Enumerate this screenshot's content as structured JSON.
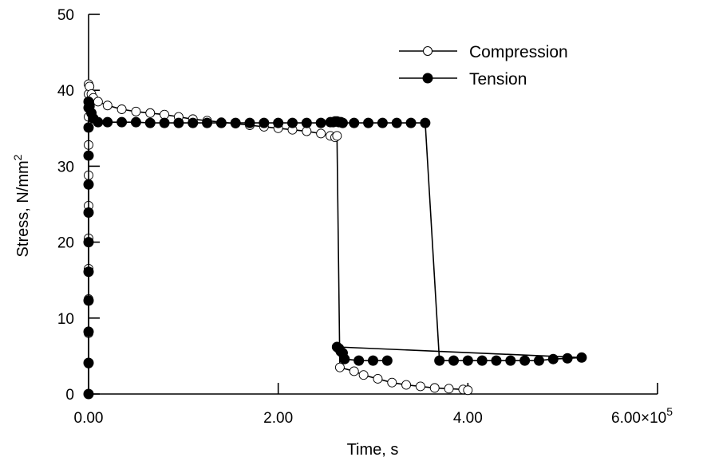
{
  "chart_data": {
    "type": "line",
    "title": "",
    "xlabel": "Time, s",
    "ylabel": "Stress, N/mm",
    "ylabel_superscript": "2",
    "x_unit_multiplier": "×10",
    "x_unit_exponent": "5",
    "xlim": [
      0,
      600000
    ],
    "ylim": [
      0,
      50
    ],
    "x_ticks": [
      0,
      200000,
      400000,
      600000
    ],
    "x_tick_labels": [
      "0.00",
      "2.00",
      "4.00",
      "6.00"
    ],
    "y_ticks": [
      0,
      10,
      20,
      30,
      40,
      50
    ],
    "y_tick_labels": [
      "0",
      "10",
      "20",
      "30",
      "40",
      "50"
    ],
    "grid": false,
    "legend_position": "top-right",
    "series": [
      {
        "name": "Compression",
        "marker": "open-circle",
        "color": "#000000",
        "x": [
          0,
          0,
          0,
          0,
          0,
          0,
          0,
          0,
          0,
          0,
          0,
          0,
          1000,
          3000,
          5000,
          10000,
          20000,
          35000,
          50000,
          65000,
          80000,
          95000,
          110000,
          125000,
          140000,
          155000,
          170000,
          185000,
          200000,
          215000,
          230000,
          245000,
          255000,
          260000,
          262000,
          265000,
          280000,
          290000,
          305000,
          320000,
          335000,
          350000,
          365000,
          380000,
          395000,
          400000
        ],
        "y": [
          0,
          4,
          8,
          12.5,
          16.5,
          20.5,
          24.8,
          28.8,
          32.8,
          36.5,
          39.5,
          40.8,
          40.5,
          39.5,
          39,
          38.5,
          38,
          37.5,
          37.2,
          37,
          36.8,
          36.5,
          36.2,
          36,
          35.8,
          35.6,
          35.4,
          35.2,
          35,
          34.8,
          34.6,
          34.3,
          34,
          33.8,
          34,
          3.5,
          3,
          2.5,
          2,
          1.5,
          1.2,
          1,
          0.8,
          0.7,
          0.6,
          0.5
        ]
      },
      {
        "name": "Tension",
        "marker": "filled-circle",
        "color": "#000000",
        "x": [
          0,
          0,
          0,
          0,
          0,
          0,
          0,
          0,
          0,
          0,
          0,
          0,
          1000,
          3000,
          5000,
          10000,
          20000,
          35000,
          50000,
          65000,
          80000,
          95000,
          110000,
          125000,
          140000,
          155000,
          170000,
          185000,
          200000,
          215000,
          230000,
          245000,
          255000,
          258000,
          260000,
          262000,
          264000,
          266000,
          268000,
          280000,
          295000,
          310000,
          325000,
          340000,
          355000,
          370000,
          385000,
          400000,
          415000,
          430000,
          445000,
          460000,
          475000,
          490000,
          505000,
          520000,
          262000,
          264000,
          266000,
          268000,
          270000,
          285000,
          300000,
          315000
        ],
        "y": [
          0,
          4.1,
          8.2,
          12.3,
          16.1,
          20,
          23.9,
          27.6,
          31.4,
          35.1,
          37.7,
          38.5,
          37.9,
          37,
          36.3,
          35.8,
          35.8,
          35.8,
          35.8,
          35.7,
          35.7,
          35.7,
          35.7,
          35.7,
          35.7,
          35.7,
          35.7,
          35.7,
          35.7,
          35.7,
          35.7,
          35.7,
          35.8,
          35.8,
          35.9,
          35.9,
          35.8,
          35.8,
          35.7,
          35.7,
          35.7,
          35.7,
          35.7,
          35.7,
          35.7,
          4.4,
          4.4,
          4.4,
          4.4,
          4.4,
          4.4,
          4.4,
          4.4,
          4.6,
          4.7,
          4.8,
          6.2,
          6,
          5.6,
          5.4,
          4.6,
          4.4,
          4.4,
          4.4
        ]
      }
    ]
  }
}
